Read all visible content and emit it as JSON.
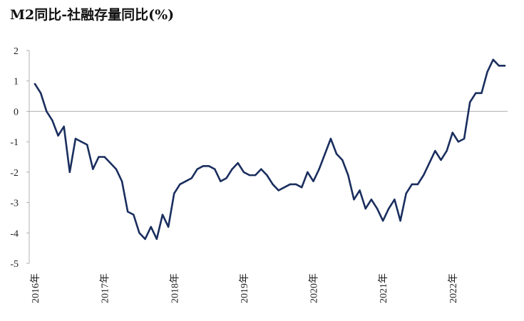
{
  "chart_data": {
    "type": "line",
    "title": "M2同比-社融存量同比(%)",
    "xlabel": "",
    "ylabel": "",
    "ylim": [
      -5,
      2
    ],
    "yticks": [
      2,
      1,
      0,
      -1,
      -2,
      -3,
      -4,
      -5
    ],
    "xticks": [
      "2016年",
      "2017年",
      "2018年",
      "2019年",
      "2020年",
      "2021年",
      "2022年"
    ],
    "grid": false,
    "legend": "none",
    "line_color": "#1a2e5e",
    "series": [
      {
        "values": [
          0.9,
          0.6,
          0.0,
          -0.3,
          -0.8,
          -0.5,
          -2.0,
          -0.9,
          -1.0,
          -1.1,
          -1.9,
          -1.5,
          -1.5,
          -1.7,
          -1.9,
          -2.3,
          -3.3,
          -3.4,
          -4.0,
          -4.2,
          -3.8,
          -4.2,
          -3.4,
          -3.8,
          -2.7,
          -2.4,
          -2.3,
          -2.2,
          -1.9,
          -1.8,
          -1.8,
          -1.9,
          -2.3,
          -2.2,
          -1.9,
          -1.7,
          -2.0,
          -2.1,
          -2.1,
          -1.9,
          -2.1,
          -2.4,
          -2.6,
          -2.5,
          -2.4,
          -2.4,
          -2.5,
          -2.0,
          -2.3,
          -1.9,
          -1.4,
          -0.9,
          -1.4,
          -1.6,
          -2.1,
          -2.9,
          -2.6,
          -3.2,
          -2.9,
          -3.2,
          -3.6,
          -3.2,
          -2.9,
          -3.6,
          -2.7,
          -2.4,
          -2.4,
          -2.1,
          -1.7,
          -1.3,
          -1.6,
          -1.3,
          -0.7,
          -1.0,
          -0.9,
          0.3,
          0.6,
          0.6,
          1.3,
          1.7,
          1.5,
          1.5
        ]
      }
    ]
  }
}
